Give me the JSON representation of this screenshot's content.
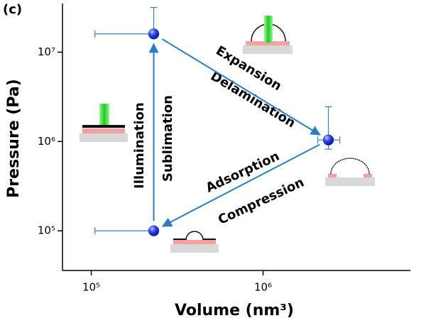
{
  "chart_data": {
    "type": "scatter",
    "panel_label": "(c)",
    "xlabel": "Volume (nm³)",
    "ylabel": "Pressure (Pa)",
    "xscale": "log",
    "yscale": "log",
    "xlim": [
      68000,
      7200000
    ],
    "ylim": [
      36000,
      35000000
    ],
    "xticks": [
      {
        "value": 100000,
        "label": "10⁵"
      },
      {
        "value": 1000000,
        "label": "10⁶"
      }
    ],
    "yticks": [
      {
        "value": 100000,
        "label": "10⁵"
      },
      {
        "value": 1000000,
        "label": "10⁶"
      },
      {
        "value": 10000000,
        "label": "10⁷"
      }
    ],
    "series": [
      {
        "color": "#1f3fe0",
        "x": [
          231000,
          2400000,
          231000
        ],
        "values": [
          16000000,
          1040000,
          100000
        ],
        "x_low": [
          105000,
          2080000,
          105000
        ],
        "x_high": [
          null,
          2800000,
          null
        ],
        "y_low": [
          null,
          820000,
          null
        ],
        "y_high": [
          31600000,
          2450000,
          null
        ]
      }
    ],
    "error_color": "#3a7fbf",
    "arrow_color": "#2a7fc4",
    "annotations": [
      "Expansion",
      "Delamination",
      "Illumination",
      "Sublimation",
      "Adsorption",
      "Compression"
    ]
  }
}
